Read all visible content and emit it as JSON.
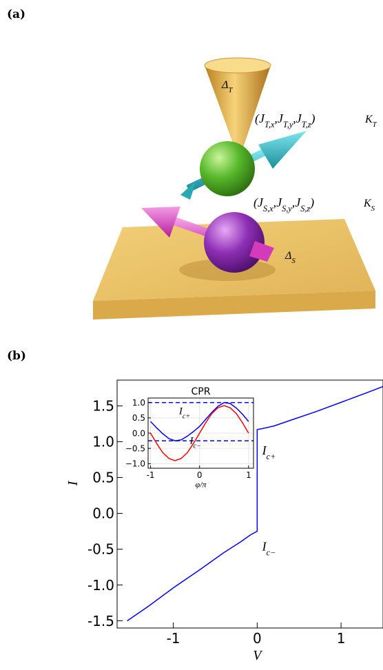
{
  "panel_labels": [
    "(a)",
    "(b)"
  ],
  "illustration": {
    "tip_gap": [
      {
        "text": "Δ",
        "sub": "T"
      }
    ],
    "tip_coupling": [
      {
        "text": "(J",
        "sub": "T,x"
      },
      {
        "text": ",J",
        "sub": "T,y"
      },
      {
        "text": ",J",
        "sub": "T,z"
      },
      {
        "text": ")"
      }
    ],
    "tip_anisotropy": [
      {
        "text": "K",
        "sub": "T"
      }
    ],
    "substrate_coupling": [
      {
        "text": "(J",
        "sub": "S,x"
      },
      {
        "text": ",J",
        "sub": "S,y"
      },
      {
        "text": ",J",
        "sub": "S,z"
      },
      {
        "text": ")"
      }
    ],
    "substrate_anisotropy": [
      {
        "text": "K",
        "sub": "S"
      }
    ],
    "substrate_gap": [
      {
        "text": "Δ",
        "sub": "S"
      }
    ]
  },
  "chart_data": [
    {
      "type": "line",
      "xlabel": "V",
      "ylabel": "I",
      "x": [
        -1.55,
        -1.3,
        -1.0,
        -0.7,
        -0.4,
        -0.2,
        -0.08,
        0,
        0,
        0.05,
        0.2,
        0.4,
        0.7,
        1.0,
        1.3,
        1.5
      ],
      "series": [
        {
          "color": "#0000ff",
          "values": [
            -1.5,
            -1.3,
            -1.04,
            -0.8,
            -0.55,
            -0.4,
            -0.3,
            -0.25,
            1.17,
            1.18,
            1.22,
            1.3,
            1.42,
            1.55,
            1.68,
            1.77
          ]
        }
      ],
      "xlim": [
        -1.67,
        1.5
      ],
      "ylim": [
        -1.6,
        1.86
      ],
      "xticks": [
        -1,
        0,
        1
      ],
      "yticks": [
        -1.5,
        {
          "value": -1,
          "label": "-1.0"
        },
        -0.5,
        {
          "value": 0,
          "label": "0.0"
        },
        0.5,
        {
          "value": 1,
          "label": "1.0"
        },
        1.5
      ],
      "annotations": [
        [
          {
            "text": "I",
            "sub": "c+"
          }
        ],
        [
          {
            "text": "I",
            "sub": "c−"
          }
        ]
      ]
    },
    {
      "type": "line",
      "title": "CPR",
      "xlabel": "φ/π",
      "grid": true,
      "x": [
        -1,
        -0.875,
        -0.75,
        -0.625,
        -0.5,
        -0.375,
        -0.25,
        -0.125,
        0,
        0.125,
        0.25,
        0.375,
        0.5,
        0.625,
        0.75,
        0.875,
        1
      ],
      "series": [
        {
          "color": "#0000ff",
          "values": [
            0.38,
            0.17,
            -0.02,
            -0.18,
            -0.25,
            -0.22,
            -0.1,
            0.05,
            0.22,
            0.45,
            0.68,
            0.88,
            1.0,
            0.97,
            0.82,
            0.62,
            0.38
          ]
        },
        {
          "color": "#ff0000",
          "values": [
            0,
            -0.34,
            -0.64,
            -0.83,
            -0.9,
            -0.83,
            -0.64,
            -0.34,
            0,
            0.34,
            0.64,
            0.83,
            0.9,
            0.83,
            0.64,
            0.34,
            0
          ]
        }
      ],
      "hlines": [
        {
          "value": 1.0,
          "color": "#0000ff"
        },
        {
          "value": -0.25,
          "color": "#0000ff"
        }
      ],
      "xlim": [
        -1.05,
        1.1
      ],
      "ylim": [
        -1.15,
        1.15
      ],
      "xticks": [
        -1,
        0,
        1
      ],
      "yticks": [
        {
          "value": -1,
          "label": "−1.0"
        },
        {
          "value": -0.5,
          "label": "−0.5"
        },
        {
          "value": 0,
          "label": "0.0"
        },
        {
          "value": 0.5,
          "label": "0.5"
        },
        {
          "value": 1,
          "label": "1.0"
        }
      ],
      "annotations": [
        [
          {
            "text": "I",
            "sub": "c+"
          }
        ],
        [
          {
            "text": "I",
            "sub": "c−"
          }
        ]
      ]
    }
  ]
}
